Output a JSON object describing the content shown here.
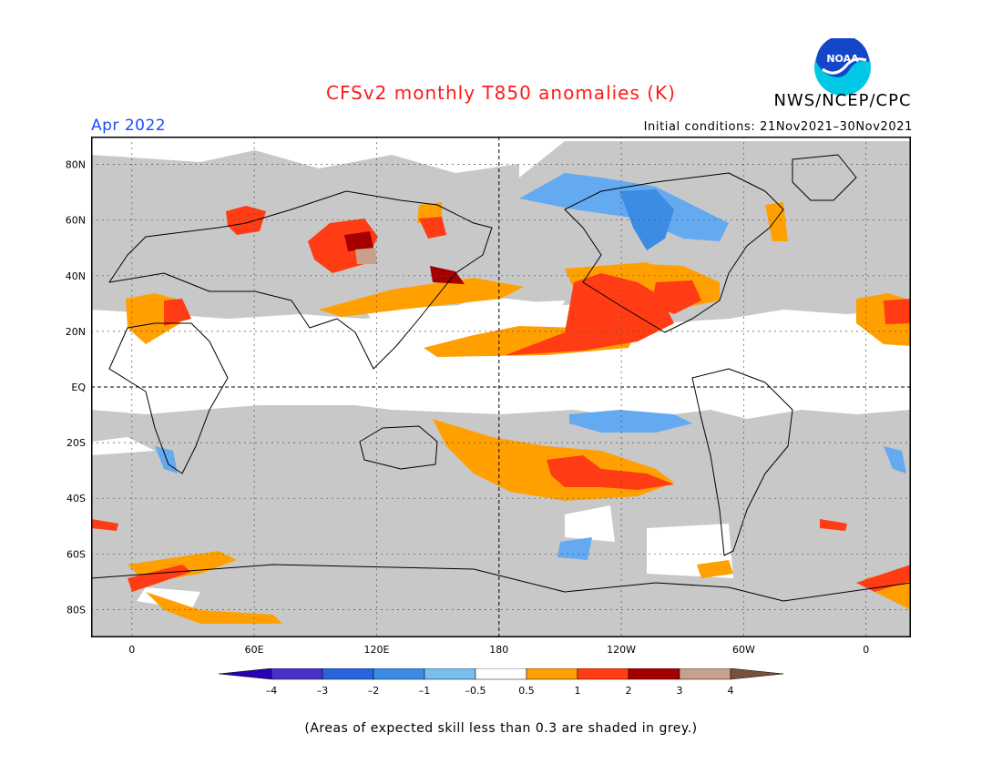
{
  "header": {
    "title": "CFSv2 monthly T850 anomalies (K)",
    "organization": "NWS/NCEP/CPC",
    "logo_text": "NOAA",
    "period": "Apr 2022",
    "initial_conditions_label": "Initial conditions:",
    "initial_conditions_range": "21Nov2021–30Nov2021"
  },
  "map": {
    "projection": "equirectangular",
    "lon_range": [
      -20,
      382
    ],
    "lat_range": [
      -90,
      90
    ],
    "lat_labels": [
      "80N",
      "60N",
      "40N",
      "20N",
      "EQ",
      "20S",
      "40S",
      "60S",
      "80S"
    ],
    "lon_labels": [
      "0",
      "60E",
      "120E",
      "180",
      "120W",
      "60W",
      "0"
    ],
    "colors": {
      "skill_grey": "#c8c8c8",
      "land_outline": "#000000",
      "pos_0_5_1": "#ffa000",
      "pos_1_2": "#ff3c14",
      "pos_2_3": "#a50000",
      "pos_3_4": "#c8a08c",
      "neg_0_5_1": "#64aaf0",
      "neg_1_2": "#3c8ce6"
    }
  },
  "colorbar": {
    "tick_labels": [
      "–4",
      "–3",
      "–2",
      "–1",
      "–0.5",
      "0.5",
      "1",
      "2",
      "3",
      "4"
    ],
    "colors": [
      "#2a00b4",
      "#4632c8",
      "#2864dc",
      "#3c8ce6",
      "#78bef0",
      "#ffffff",
      "#ffa000",
      "#ff3c14",
      "#a50000",
      "#c8a08c",
      "#78503c"
    ]
  },
  "footnote": "(Areas of expected skill less than 0.3 are shaded in grey.)"
}
